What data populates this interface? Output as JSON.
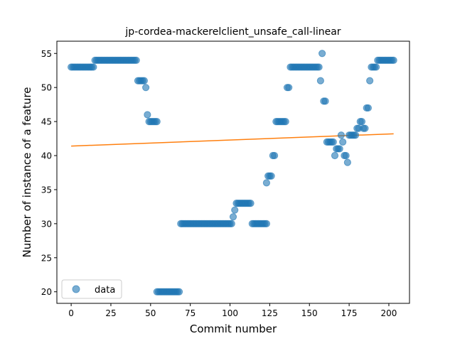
{
  "chart_data": {
    "type": "scatter",
    "title": "jp-cordea-mackerelclient_unsafe_call-linear",
    "xlabel": "Commit number",
    "ylabel": "Number of instance of a feature",
    "xlim": [
      -9,
      213
    ],
    "ylim": [
      18.3,
      56.8
    ],
    "xticks": [
      0,
      25,
      50,
      75,
      100,
      125,
      150,
      175,
      200
    ],
    "yticks": [
      20,
      25,
      30,
      35,
      40,
      45,
      50,
      55
    ],
    "grid": false,
    "legend_position": "lower-left",
    "legend": [
      {
        "label": "data",
        "marker": "circle"
      }
    ],
    "colors": {
      "data": "#1f77b4",
      "fit": "#ff7f0e"
    },
    "series": [
      {
        "name": "data",
        "kind": "scatter",
        "segments": [
          {
            "x_start": 0,
            "x_end": 14,
            "y": 53
          },
          {
            "x_start": 15,
            "x_end": 41,
            "y": 54
          },
          {
            "x_start": 42,
            "x_end": 46,
            "y": 51
          },
          {
            "x_start": 47,
            "x_end": 47,
            "y": 50
          },
          {
            "x_start": 48,
            "x_end": 48,
            "y": 46
          },
          {
            "x_start": 49,
            "x_end": 54,
            "y": 45
          },
          {
            "x_start": 54,
            "x_end": 68,
            "y": 20
          },
          {
            "x_start": 69,
            "x_end": 101,
            "y": 30
          },
          {
            "x_start": 102,
            "x_end": 102,
            "y": 31
          },
          {
            "x_start": 103,
            "x_end": 103,
            "y": 32
          },
          {
            "x_start": 104,
            "x_end": 113,
            "y": 33
          },
          {
            "x_start": 114,
            "x_end": 123,
            "y": 30
          },
          {
            "x_start": 123,
            "x_end": 123,
            "y": 36
          },
          {
            "x_start": 124,
            "x_end": 126,
            "y": 37
          },
          {
            "x_start": 127,
            "x_end": 128,
            "y": 40
          },
          {
            "x_start": 129,
            "x_end": 135,
            "y": 45
          },
          {
            "x_start": 136,
            "x_end": 137,
            "y": 50
          },
          {
            "x_start": 138,
            "x_end": 156,
            "y": 53
          },
          {
            "x_start": 157,
            "x_end": 157,
            "y": 51
          },
          {
            "x_start": 158,
            "x_end": 158,
            "y": 55
          },
          {
            "x_start": 159,
            "x_end": 160,
            "y": 48
          },
          {
            "x_start": 161,
            "x_end": 165,
            "y": 42
          },
          {
            "x_start": 166,
            "x_end": 166,
            "y": 40
          },
          {
            "x_start": 167,
            "x_end": 169,
            "y": 41
          },
          {
            "x_start": 170,
            "x_end": 170,
            "y": 43
          },
          {
            "x_start": 171,
            "x_end": 171,
            "y": 42
          },
          {
            "x_start": 172,
            "x_end": 173,
            "y": 40
          },
          {
            "x_start": 174,
            "x_end": 174,
            "y": 39
          },
          {
            "x_start": 175,
            "x_end": 179,
            "y": 43
          },
          {
            "x_start": 180,
            "x_end": 181,
            "y": 44
          },
          {
            "x_start": 182,
            "x_end": 183,
            "y": 45
          },
          {
            "x_start": 184,
            "x_end": 185,
            "y": 44
          },
          {
            "x_start": 186,
            "x_end": 187,
            "y": 47
          },
          {
            "x_start": 188,
            "x_end": 188,
            "y": 51
          },
          {
            "x_start": 189,
            "x_end": 192,
            "y": 53
          },
          {
            "x_start": 193,
            "x_end": 203,
            "y": 54
          }
        ]
      },
      {
        "name": "linear fit",
        "kind": "line",
        "points": [
          [
            0,
            41.4
          ],
          [
            203,
            43.2
          ]
        ]
      }
    ]
  }
}
